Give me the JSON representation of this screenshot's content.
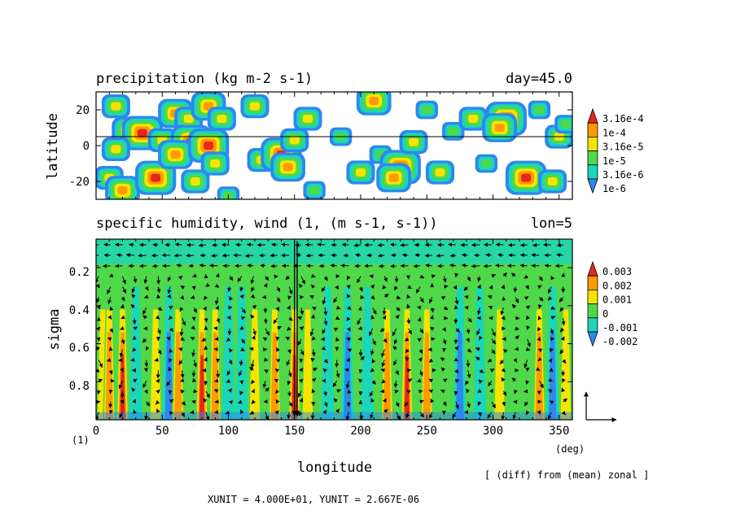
{
  "chart_data": [
    {
      "type": "heatmap",
      "title": "precipitation (kg m-2 s-1)",
      "title_right": "day=45.0",
      "xlabel": "",
      "ylabel": "latitude",
      "xlim": [
        0,
        360
      ],
      "ylim": [
        -30,
        30
      ],
      "y_ticks": [
        "20",
        "0",
        "-20"
      ],
      "reference_line_latitude": 5,
      "colorbar": {
        "labels": [
          "3.16e-4",
          "1e-4",
          "3.16e-5",
          "1e-5",
          "3.16e-6",
          "1e-6"
        ],
        "colors": [
          "#e8251e",
          "#ff9a00",
          "#f6e400",
          "#4fd84a",
          "#1bd6b9",
          "#2e86f0"
        ]
      },
      "scale": "log",
      "blobs": [
        {
          "lon": 15,
          "lat": 22,
          "level": 3
        },
        {
          "lon": 25,
          "lat": 8,
          "level": 4
        },
        {
          "lon": 35,
          "lat": 7,
          "level": 5
        },
        {
          "lon": 15,
          "lat": -2,
          "level": 3
        },
        {
          "lon": 10,
          "lat": -18,
          "level": 3
        },
        {
          "lon": 20,
          "lat": -25,
          "level": 4
        },
        {
          "lon": 45,
          "lat": -18,
          "level": 5
        },
        {
          "lon": 50,
          "lat": 3,
          "level": 3
        },
        {
          "lon": 60,
          "lat": 18,
          "level": 4
        },
        {
          "lon": 70,
          "lat": 15,
          "level": 3
        },
        {
          "lon": 72,
          "lat": 2,
          "level": 5
        },
        {
          "lon": 60,
          "lat": -5,
          "level": 4
        },
        {
          "lon": 75,
          "lat": -20,
          "level": 3
        },
        {
          "lon": 85,
          "lat": 22,
          "level": 4
        },
        {
          "lon": 95,
          "lat": 15,
          "level": 3
        },
        {
          "lon": 85,
          "lat": 0,
          "level": 5
        },
        {
          "lon": 90,
          "lat": -10,
          "level": 3
        },
        {
          "lon": 100,
          "lat": -28,
          "level": 2
        },
        {
          "lon": 120,
          "lat": 22,
          "level": 3
        },
        {
          "lon": 125,
          "lat": -8,
          "level": 3
        },
        {
          "lon": 140,
          "lat": -5,
          "level": 5
        },
        {
          "lon": 145,
          "lat": -12,
          "level": 4
        },
        {
          "lon": 150,
          "lat": 3,
          "level": 3
        },
        {
          "lon": 160,
          "lat": 15,
          "level": 3
        },
        {
          "lon": 165,
          "lat": -25,
          "level": 2
        },
        {
          "lon": 185,
          "lat": 5,
          "level": 2
        },
        {
          "lon": 200,
          "lat": -15,
          "level": 3
        },
        {
          "lon": 210,
          "lat": 25,
          "level": 4
        },
        {
          "lon": 215,
          "lat": -5,
          "level": 2
        },
        {
          "lon": 230,
          "lat": -12,
          "level": 5
        },
        {
          "lon": 225,
          "lat": -18,
          "level": 4
        },
        {
          "lon": 240,
          "lat": 2,
          "level": 3
        },
        {
          "lon": 250,
          "lat": 20,
          "level": 2
        },
        {
          "lon": 260,
          "lat": -15,
          "level": 3
        },
        {
          "lon": 270,
          "lat": 8,
          "level": 2
        },
        {
          "lon": 285,
          "lat": 15,
          "level": 3
        },
        {
          "lon": 295,
          "lat": -10,
          "level": 2
        },
        {
          "lon": 310,
          "lat": 15,
          "level": 5
        },
        {
          "lon": 305,
          "lat": 10,
          "level": 4
        },
        {
          "lon": 325,
          "lat": -18,
          "level": 5
        },
        {
          "lon": 335,
          "lat": 20,
          "level": 2
        },
        {
          "lon": 350,
          "lat": 5,
          "level": 3
        },
        {
          "lon": 345,
          "lat": -20,
          "level": 3
        },
        {
          "lon": 355,
          "lat": 12,
          "level": 2
        }
      ]
    },
    {
      "type": "heatmap",
      "title": "specific humidity, wind (1, (m s-1, s-1))",
      "title_right": "lon=5",
      "xlabel": "longitude",
      "ylabel": "sigma",
      "xlim": [
        0,
        360
      ],
      "ylim": [
        1,
        0.05
      ],
      "x_ticks": [
        "0",
        "50",
        "100",
        "150",
        "200",
        "250",
        "300",
        "350"
      ],
      "y_ticks": [
        "0.2",
        "0.4",
        "0.6",
        "0.8"
      ],
      "x_unit_label": "(deg)",
      "y_unit_label": "(1)",
      "colorbar": {
        "labels": [
          "0.003",
          "0.002",
          "0.001",
          "0",
          "-0.001",
          "-0.002"
        ],
        "colors": [
          "#e8251e",
          "#ff9a00",
          "#f6e400",
          "#4fd84a",
          "#1bd6b9",
          "#2e86f0"
        ]
      },
      "columns": [
        {
          "lon": 5,
          "low": 1
        },
        {
          "lon": 10,
          "low": 2
        },
        {
          "lon": 20,
          "low": 3
        },
        {
          "lon": 30,
          "low": -1
        },
        {
          "lon": 45,
          "low": 1
        },
        {
          "lon": 55,
          "low": -2
        },
        {
          "lon": 62,
          "low": 2
        },
        {
          "lon": 80,
          "low": 3
        },
        {
          "lon": 90,
          "low": 2
        },
        {
          "lon": 100,
          "low": -1
        },
        {
          "lon": 110,
          "low": -1
        },
        {
          "lon": 120,
          "low": 1
        },
        {
          "lon": 135,
          "low": 2
        },
        {
          "lon": 150,
          "low": 3
        },
        {
          "lon": 160,
          "low": 1
        },
        {
          "lon": 175,
          "low": -1
        },
        {
          "lon": 190,
          "low": -2
        },
        {
          "lon": 205,
          "low": -1
        },
        {
          "lon": 220,
          "low": 2
        },
        {
          "lon": 235,
          "low": 3
        },
        {
          "lon": 250,
          "low": 2
        },
        {
          "lon": 262,
          "low": 0
        },
        {
          "lon": 275,
          "low": -2
        },
        {
          "lon": 290,
          "low": -1
        },
        {
          "lon": 305,
          "low": 1
        },
        {
          "lon": 320,
          "low": 0
        },
        {
          "lon": 335,
          "low": 2
        },
        {
          "lon": 345,
          "low": -2
        },
        {
          "lon": 355,
          "low": 1
        }
      ]
    }
  ],
  "footer": {
    "note": "[ (diff) from (mean) zonal ]",
    "units": "XUNIT = 4.000E+01, YUNIT = 2.667E-06"
  }
}
